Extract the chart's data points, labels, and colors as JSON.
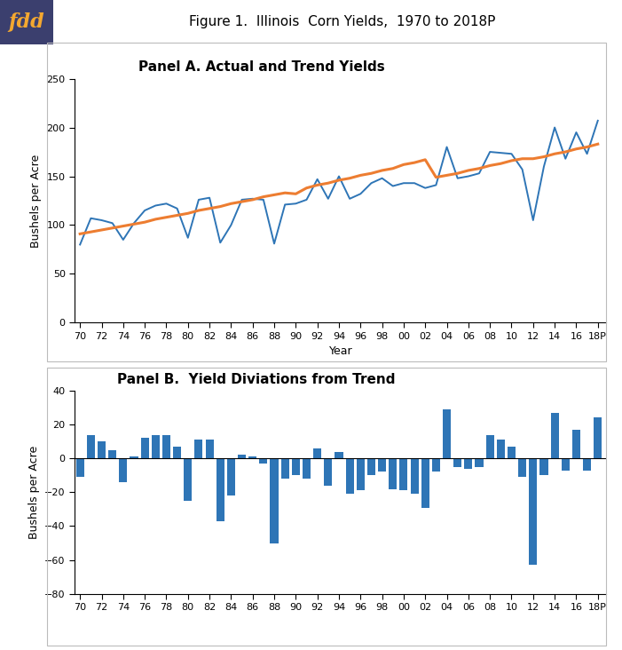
{
  "title": "Figure 1.  Illinois  Corn Yields,  1970 to 2018P",
  "panel_a_title": "Panel A. Actual and Trend Yields",
  "panel_b_title": "Panel B.  Yield Diviations from Trend",
  "ylabel_a": "Bushels per Acre",
  "ylabel_b": "Bushels per Acre",
  "xlabel_a": "Year",
  "years": [
    1970,
    1971,
    1972,
    1973,
    1974,
    1975,
    1976,
    1977,
    1978,
    1979,
    1980,
    1981,
    1982,
    1983,
    1984,
    1985,
    1986,
    1987,
    1988,
    1989,
    1990,
    1991,
    1992,
    1993,
    1994,
    1995,
    1996,
    1997,
    1998,
    1999,
    2000,
    2001,
    2002,
    2003,
    2004,
    2005,
    2006,
    2007,
    2008,
    2009,
    2010,
    2011,
    2012,
    2013,
    2014,
    2015,
    2016,
    2017,
    2018
  ],
  "tick_labels": [
    "70",
    "72",
    "74",
    "76",
    "78",
    "80",
    "82",
    "84",
    "86",
    "88",
    "90",
    "92",
    "94",
    "96",
    "98",
    "00",
    "02",
    "04",
    "06",
    "08",
    "10",
    "12",
    "14",
    "16",
    "18P"
  ],
  "tick_years": [
    1970,
    1972,
    1974,
    1976,
    1978,
    1980,
    1982,
    1984,
    1986,
    1988,
    1990,
    1992,
    1994,
    1996,
    1998,
    2000,
    2002,
    2004,
    2006,
    2008,
    2010,
    2012,
    2014,
    2016,
    2018
  ],
  "actual_yields": [
    80,
    107,
    105,
    102,
    85,
    102,
    115,
    120,
    122,
    117,
    87,
    126,
    128,
    82,
    100,
    126,
    127,
    126,
    81,
    121,
    122,
    126,
    147,
    127,
    150,
    127,
    132,
    143,
    148,
    140,
    143,
    143,
    138,
    141,
    180,
    148,
    150,
    153,
    175,
    174,
    173,
    157,
    105,
    160,
    200,
    168,
    195,
    173,
    207
  ],
  "trend_yields": [
    91,
    93,
    95,
    97,
    99,
    101,
    103,
    106,
    108,
    110,
    112,
    115,
    117,
    119,
    122,
    124,
    126,
    129,
    131,
    133,
    132,
    138,
    141,
    143,
    146,
    148,
    151,
    153,
    156,
    158,
    162,
    164,
    167,
    149,
    151,
    153,
    156,
    158,
    161,
    163,
    166,
    168,
    168,
    170,
    173,
    175,
    178,
    180,
    183
  ],
  "deviations": [
    -11,
    14,
    10,
    5,
    -14,
    1,
    12,
    14,
    14,
    7,
    -25,
    11,
    11,
    -37,
    -22,
    2,
    1,
    -3,
    -50,
    -12,
    -10,
    -12,
    6,
    -16,
    4,
    -21,
    -19,
    -10,
    -8,
    -18,
    -19,
    -21,
    -29,
    -8,
    29,
    -5,
    -6,
    -5,
    14,
    11,
    7,
    -11,
    -63,
    -10,
    27,
    -7,
    17,
    -7,
    24
  ],
  "actual_color": "#2E75B6",
  "trend_color": "#ED7D31",
  "bar_color": "#2E75B6",
  "fdd_bg": "#3B3F6E",
  "fdd_text_color": "#F4A830",
  "ylim_a": [
    0,
    250
  ],
  "ylim_b": [
    -80,
    40
  ],
  "yticks_a": [
    0,
    50,
    100,
    150,
    200,
    250
  ],
  "yticks_b": [
    -80,
    -60,
    -40,
    -20,
    0,
    20,
    40
  ],
  "outer_border_color": "#BBBBBB",
  "title_fontsize": 11,
  "panel_title_fontsize": 11,
  "axis_label_fontsize": 9,
  "tick_fontsize": 8
}
